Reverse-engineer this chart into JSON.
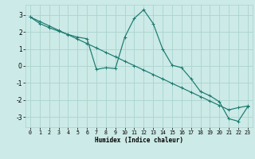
{
  "xlabel": "Humidex (Indice chaleur)",
  "xlim": [
    -0.5,
    23.5
  ],
  "ylim": [
    -3.6,
    3.6
  ],
  "yticks": [
    -3,
    -2,
    -1,
    0,
    1,
    2,
    3
  ],
  "xticks": [
    0,
    1,
    2,
    3,
    4,
    5,
    6,
    7,
    8,
    9,
    10,
    11,
    12,
    13,
    14,
    15,
    16,
    17,
    18,
    19,
    20,
    21,
    22,
    23
  ],
  "background_color": "#cceae7",
  "grid_color": "#aad4cf",
  "line_color": "#1a7a6e",
  "line1_x": [
    0,
    1,
    2,
    3,
    4,
    5,
    6,
    7,
    8,
    9,
    10,
    11,
    12,
    13,
    14,
    15,
    16,
    17,
    18,
    19,
    20,
    21,
    22,
    23
  ],
  "line1_y": [
    2.88,
    2.62,
    2.36,
    2.1,
    1.84,
    1.58,
    1.32,
    1.06,
    0.8,
    0.54,
    0.28,
    0.02,
    -0.24,
    -0.5,
    -0.76,
    -1.02,
    -1.28,
    -1.54,
    -1.8,
    -2.06,
    -2.32,
    -2.58,
    -2.45,
    -2.35
  ],
  "line2_x": [
    0,
    1,
    2,
    3,
    4,
    5,
    6,
    7,
    8,
    9,
    10,
    11,
    12,
    13,
    14,
    15,
    16,
    17,
    18,
    19,
    20,
    21,
    22,
    23
  ],
  "line2_y": [
    2.88,
    2.5,
    2.25,
    2.05,
    1.85,
    1.7,
    1.6,
    -0.2,
    -0.1,
    -0.15,
    1.7,
    2.8,
    3.3,
    2.5,
    1.0,
    0.05,
    -0.1,
    -0.75,
    -1.5,
    -1.75,
    -2.1,
    -3.1,
    -3.25,
    -2.4
  ]
}
